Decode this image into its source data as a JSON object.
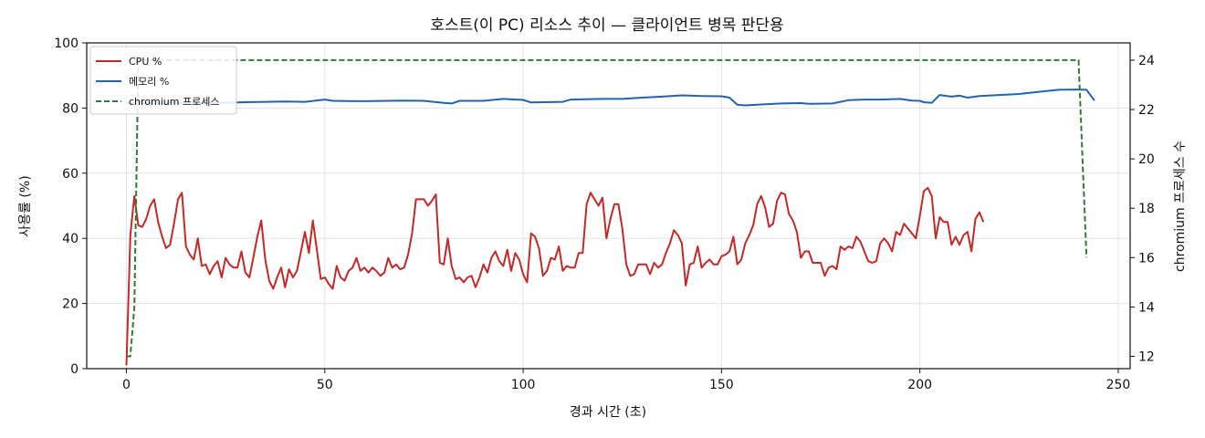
{
  "chart_data": {
    "type": "line",
    "title": "호스트(이 PC) 리소스 추이 — 클라이언트 병목 판단용",
    "xlabel": "경과 시간 (초)",
    "ylabel": "사용률 (%)",
    "y2label": "chromium 프로세스 수",
    "xlim": [
      -10,
      253
    ],
    "ylim": [
      0,
      100
    ],
    "y2lim": [
      11.5,
      24.7
    ],
    "x_ticks": [
      0,
      50,
      100,
      150,
      200,
      250
    ],
    "y_ticks": [
      0,
      20,
      40,
      60,
      80,
      100
    ],
    "y2_ticks": [
      12,
      14,
      16,
      18,
      20,
      22,
      24
    ],
    "grid": true,
    "legend_position": "top-left",
    "series": [
      {
        "name": "CPU %",
        "color": "#c62828",
        "axis": "left",
        "style": "solid",
        "points": [
          [
            0,
            1
          ],
          [
            1,
            41
          ],
          [
            2,
            53
          ],
          [
            3,
            44
          ],
          [
            4,
            43.5
          ],
          [
            5,
            46
          ],
          [
            6,
            50
          ],
          [
            7,
            52
          ],
          [
            8,
            45
          ],
          [
            9,
            40.5
          ],
          [
            10,
            37
          ],
          [
            11,
            38
          ],
          [
            12,
            44.5
          ],
          [
            13,
            52
          ],
          [
            14,
            54
          ],
          [
            15,
            37.5
          ],
          [
            16,
            35
          ],
          [
            17,
            33.5
          ],
          [
            18,
            40
          ],
          [
            19,
            31.5
          ],
          [
            20,
            32
          ],
          [
            21,
            29
          ],
          [
            22,
            31.5
          ],
          [
            23,
            33
          ],
          [
            24,
            28
          ],
          [
            25,
            34
          ],
          [
            26,
            32
          ],
          [
            27,
            31
          ],
          [
            28,
            31
          ],
          [
            29,
            36
          ],
          [
            30,
            29.5
          ],
          [
            31,
            28
          ],
          [
            32,
            34
          ],
          [
            33,
            40.5
          ],
          [
            34,
            45.5
          ],
          [
            35,
            33.5
          ],
          [
            36,
            27
          ],
          [
            37,
            24.5
          ],
          [
            38,
            28
          ],
          [
            39,
            31
          ],
          [
            40,
            25
          ],
          [
            41,
            30.5
          ],
          [
            42,
            28
          ],
          [
            43,
            30
          ],
          [
            44,
            36
          ],
          [
            45,
            42
          ],
          [
            46,
            35.5
          ],
          [
            47,
            45.5
          ],
          [
            48,
            36.5
          ],
          [
            49,
            27.5
          ],
          [
            50,
            28
          ],
          [
            51,
            26
          ],
          [
            52,
            24.5
          ],
          [
            53,
            31.5
          ],
          [
            54,
            28
          ],
          [
            55,
            27
          ],
          [
            56,
            30
          ],
          [
            57,
            31
          ],
          [
            58,
            34
          ],
          [
            59,
            30
          ],
          [
            60,
            31
          ],
          [
            61,
            29.5
          ],
          [
            62,
            31
          ],
          [
            63,
            30
          ],
          [
            64,
            28.5
          ],
          [
            65,
            29.5
          ],
          [
            66,
            34
          ],
          [
            67,
            31
          ],
          [
            68,
            32
          ],
          [
            69,
            30.5
          ],
          [
            70,
            31
          ],
          [
            71,
            35
          ],
          [
            72,
            41.5
          ],
          [
            73,
            52
          ],
          [
            74,
            52
          ],
          [
            75,
            52
          ],
          [
            76,
            50
          ],
          [
            77,
            51.5
          ],
          [
            78,
            53.5
          ],
          [
            79,
            32.5
          ],
          [
            80,
            32
          ],
          [
            81,
            40
          ],
          [
            82,
            31.5
          ],
          [
            83,
            27.5
          ],
          [
            84,
            28
          ],
          [
            85,
            26.5
          ],
          [
            86,
            28
          ],
          [
            87,
            28.5
          ],
          [
            88,
            25
          ],
          [
            89,
            28
          ],
          [
            90,
            32
          ],
          [
            91,
            29.5
          ],
          [
            92,
            34
          ],
          [
            93,
            36
          ],
          [
            94,
            33
          ],
          [
            95,
            31.5
          ],
          [
            96,
            36.5
          ],
          [
            97,
            30
          ],
          [
            98,
            35.5
          ],
          [
            99,
            33.5
          ],
          [
            100,
            29
          ],
          [
            101,
            26.5
          ],
          [
            102,
            41.5
          ],
          [
            103,
            40.5
          ],
          [
            104,
            37
          ],
          [
            105,
            28.5
          ],
          [
            106,
            30
          ],
          [
            107,
            34
          ],
          [
            108,
            33.5
          ],
          [
            109,
            37.5
          ],
          [
            110,
            30
          ],
          [
            111,
            31.5
          ],
          [
            112,
            31
          ],
          [
            113,
            31
          ],
          [
            114,
            35.5
          ],
          [
            115,
            35.5
          ],
          [
            116,
            50.5
          ],
          [
            117,
            54
          ],
          [
            118,
            52
          ],
          [
            119,
            50
          ],
          [
            120,
            52.5
          ],
          [
            121,
            40
          ],
          [
            122,
            46
          ],
          [
            123,
            50.5
          ],
          [
            124,
            50.5
          ],
          [
            125,
            43
          ],
          [
            126,
            32
          ],
          [
            127,
            28.5
          ],
          [
            128,
            29
          ],
          [
            129,
            32
          ],
          [
            130,
            32
          ],
          [
            131,
            32
          ],
          [
            132,
            29
          ],
          [
            133,
            32.5
          ],
          [
            134,
            31
          ],
          [
            135,
            32
          ],
          [
            136,
            35.5
          ],
          [
            137,
            38.5
          ],
          [
            138,
            42.5
          ],
          [
            139,
            41
          ],
          [
            140,
            38.5
          ],
          [
            141,
            25.5
          ],
          [
            142,
            32
          ],
          [
            143,
            32.5
          ],
          [
            144,
            37.5
          ],
          [
            145,
            31
          ],
          [
            146,
            32.5
          ],
          [
            147,
            33.5
          ],
          [
            148,
            32
          ],
          [
            149,
            32
          ],
          [
            150,
            34.5
          ],
          [
            151,
            35
          ],
          [
            152,
            36
          ],
          [
            153,
            40.5
          ],
          [
            154,
            32
          ],
          [
            155,
            33.5
          ],
          [
            156,
            38.5
          ],
          [
            157,
            41
          ],
          [
            158,
            44
          ],
          [
            159,
            50.5
          ],
          [
            160,
            53
          ],
          [
            161,
            49.5
          ],
          [
            162,
            43.5
          ],
          [
            163,
            44.5
          ],
          [
            164,
            51.5
          ],
          [
            165,
            54
          ],
          [
            166,
            53.5
          ],
          [
            167,
            47.5
          ],
          [
            168,
            45.5
          ],
          [
            169,
            42
          ],
          [
            170,
            34
          ],
          [
            171,
            36
          ],
          [
            172,
            36
          ],
          [
            173,
            32.5
          ],
          [
            174,
            32.5
          ],
          [
            175,
            32.5
          ],
          [
            176,
            28.5
          ],
          [
            177,
            31
          ],
          [
            178,
            31.5
          ],
          [
            179,
            30.5
          ],
          [
            180,
            37.5
          ],
          [
            181,
            36.5
          ],
          [
            182,
            37.5
          ],
          [
            183,
            37
          ],
          [
            184,
            40.5
          ],
          [
            185,
            39
          ],
          [
            186,
            36
          ],
          [
            187,
            33
          ],
          [
            188,
            32.5
          ],
          [
            189,
            33
          ],
          [
            190,
            38.5
          ],
          [
            191,
            40
          ],
          [
            192,
            38.5
          ],
          [
            193,
            36
          ],
          [
            194,
            42
          ],
          [
            195,
            41
          ],
          [
            196,
            44.5
          ],
          [
            197,
            43
          ],
          [
            198,
            41.5
          ],
          [
            199,
            40
          ],
          [
            200,
            47
          ],
          [
            201,
            54.5
          ],
          [
            202,
            55.5
          ],
          [
            203,
            53
          ],
          [
            204,
            40
          ],
          [
            205,
            46.5
          ],
          [
            206,
            45
          ],
          [
            207,
            45
          ],
          [
            208,
            38
          ],
          [
            209,
            40.5
          ],
          [
            210,
            38
          ],
          [
            211,
            41
          ],
          [
            212,
            42
          ],
          [
            213,
            36
          ],
          [
            214,
            46
          ],
          [
            215,
            48
          ],
          [
            216,
            45
          ]
        ]
      },
      {
        "name": "메모리 %",
        "color": "#1f63b5",
        "axis": "left",
        "style": "solid",
        "points": [
          [
            0,
            81.5
          ],
          [
            10,
            81.6
          ],
          [
            20,
            81.5
          ],
          [
            30,
            81.8
          ],
          [
            40,
            82
          ],
          [
            45,
            81.9
          ],
          [
            50,
            82.6
          ],
          [
            52,
            82.2
          ],
          [
            60,
            82.1
          ],
          [
            70,
            82.3
          ],
          [
            75,
            82.2
          ],
          [
            80,
            81.6
          ],
          [
            82,
            81.4
          ],
          [
            84,
            82.2
          ],
          [
            90,
            82.2
          ],
          [
            95,
            82.8
          ],
          [
            100,
            82.5
          ],
          [
            102,
            81.7
          ],
          [
            110,
            81.9
          ],
          [
            112,
            82.6
          ],
          [
            120,
            82.8
          ],
          [
            125,
            82.8
          ],
          [
            130,
            83.2
          ],
          [
            135,
            83.5
          ],
          [
            140,
            83.9
          ],
          [
            145,
            83.7
          ],
          [
            150,
            83.6
          ],
          [
            152,
            83.2
          ],
          [
            154,
            81
          ],
          [
            156,
            80.8
          ],
          [
            160,
            81.1
          ],
          [
            165,
            81.4
          ],
          [
            170,
            81.5
          ],
          [
            172,
            81.3
          ],
          [
            178,
            81.4
          ],
          [
            182,
            82.4
          ],
          [
            186,
            82.6
          ],
          [
            190,
            82.6
          ],
          [
            195,
            82.8
          ],
          [
            198,
            82.3
          ],
          [
            200,
            82.2
          ],
          [
            201,
            81.8
          ],
          [
            203,
            81.6
          ],
          [
            205,
            84
          ],
          [
            208,
            83.5
          ],
          [
            210,
            83.8
          ],
          [
            212,
            83.2
          ],
          [
            215,
            83.7
          ],
          [
            220,
            84
          ],
          [
            225,
            84.3
          ],
          [
            230,
            85
          ],
          [
            235,
            85.6
          ],
          [
            240,
            85.7
          ],
          [
            242,
            85.6
          ],
          [
            244,
            82.3
          ]
        ]
      },
      {
        "name": "chromium 프로세스",
        "color": "#2e7d32",
        "axis": "right",
        "style": "dashed",
        "points": [
          [
            0,
            12
          ],
          [
            1,
            12
          ],
          [
            2,
            14
          ],
          [
            3,
            24
          ],
          [
            240,
            24
          ],
          [
            241,
            20
          ],
          [
            242,
            16
          ]
        ]
      }
    ]
  }
}
